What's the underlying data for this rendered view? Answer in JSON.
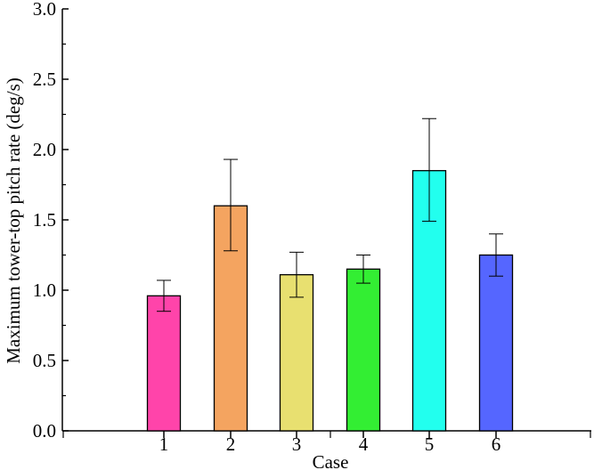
{
  "chart_data": {
    "type": "bar",
    "title": "",
    "xlabel": "Case",
    "ylabel": "Maximum tower-top pitch rate (deg/s)",
    "categories": [
      "1",
      "2",
      "3",
      "4",
      "5",
      "6"
    ],
    "values": [
      0.96,
      1.6,
      1.11,
      1.15,
      1.85,
      1.25
    ],
    "error_low": [
      0.85,
      1.28,
      0.95,
      1.05,
      1.49,
      1.1
    ],
    "error_high": [
      1.07,
      1.93,
      1.27,
      1.25,
      2.22,
      1.4
    ],
    "colors": [
      "#ff44aa",
      "#f4a460",
      "#e8e070",
      "#33ee33",
      "#22ffee",
      "#5566ff"
    ],
    "ylim": [
      0,
      3.0
    ],
    "yticks": [
      "0.0",
      "0.5",
      "1.0",
      "1.5",
      "2.0",
      "2.5",
      "3.0"
    ],
    "grid": false,
    "legend": "none"
  }
}
